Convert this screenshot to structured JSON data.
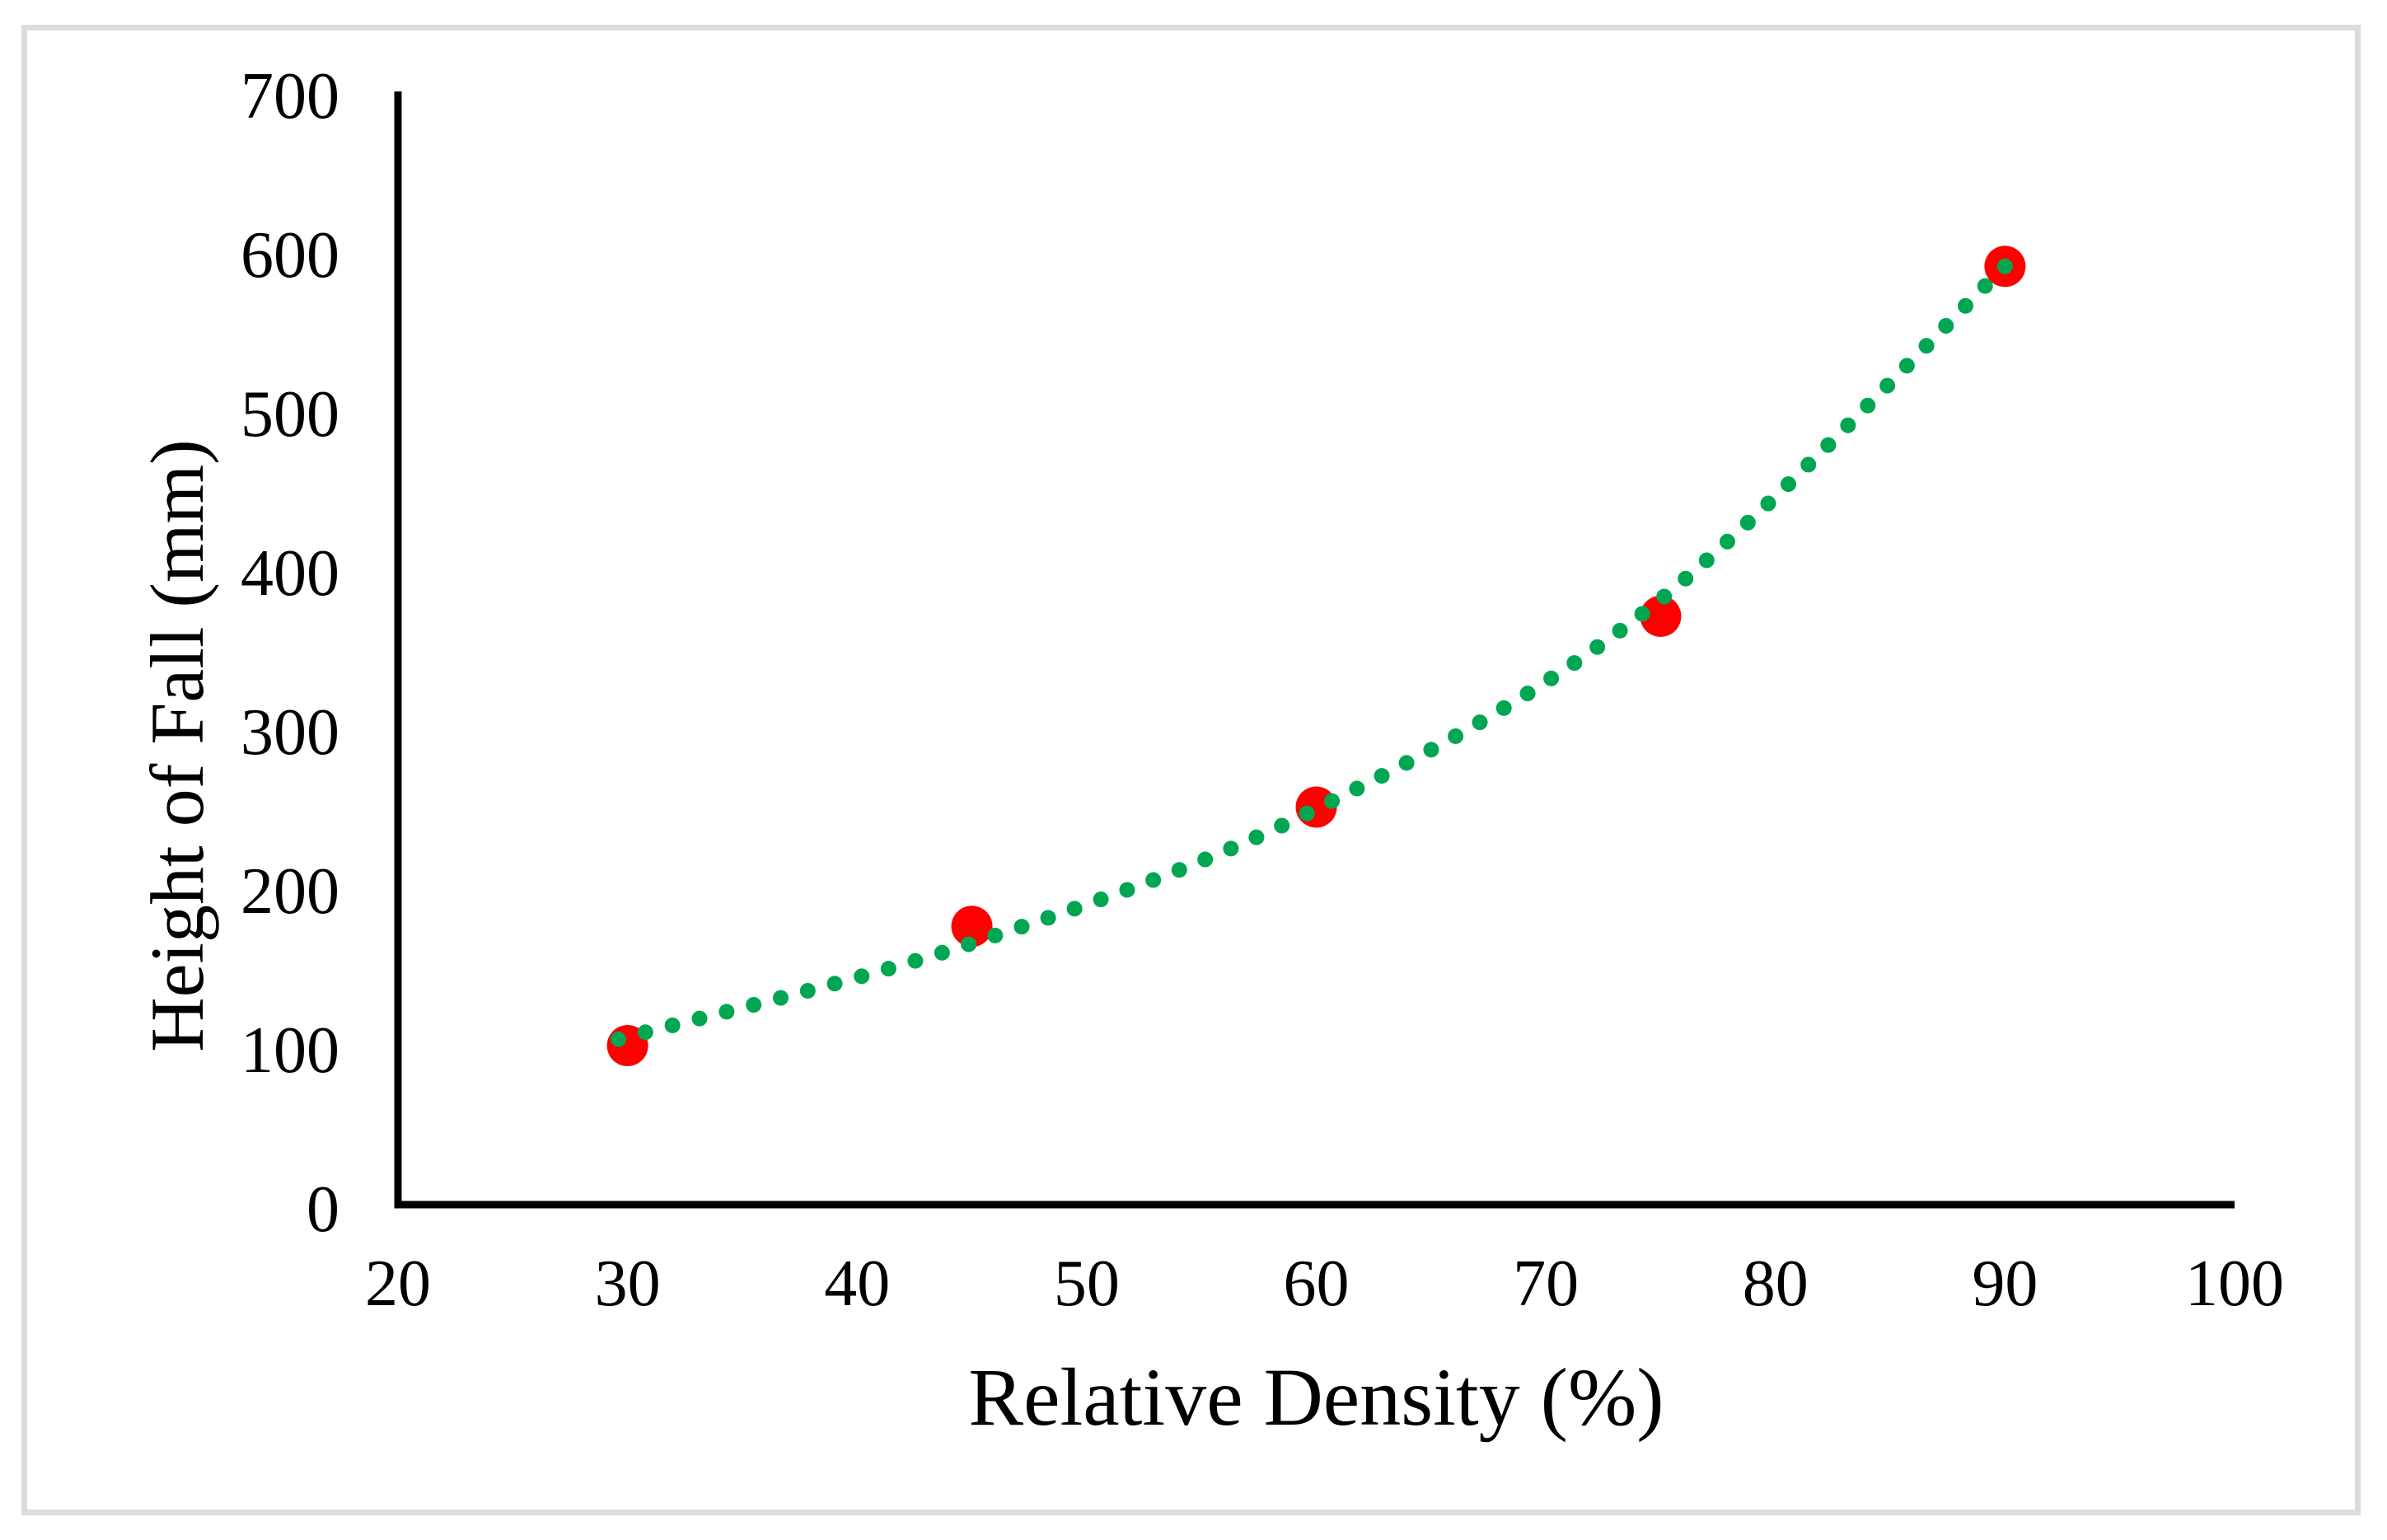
{
  "figure": {
    "background": "#FFFFFF",
    "border_color": "#DCDCDC",
    "axis_color": "#000000",
    "text_color": "#000000"
  },
  "chart_data": {
    "type": "scatter",
    "title": "",
    "xlabel": "Relative Density (%)",
    "ylabel": "Height of Fall (mm)",
    "xlim": [
      20,
      100
    ],
    "ylim": [
      0,
      700
    ],
    "x_ticks": [
      20,
      30,
      40,
      50,
      60,
      70,
      80,
      90,
      100
    ],
    "y_ticks": [
      0,
      100,
      200,
      300,
      400,
      500,
      600,
      700
    ],
    "grid": false,
    "legend": false,
    "series": [
      {
        "name": "height-of-fall-points",
        "marker": "circle",
        "color": "#FF0000",
        "marker_radius_px": 25,
        "points": [
          [
            30,
            100
          ],
          [
            45,
            175
          ],
          [
            60,
            250
          ],
          [
            75,
            370
          ],
          [
            90,
            590
          ]
        ]
      }
    ],
    "trendline": {
      "style": "round-dot",
      "color": "#00A651",
      "dot_radius_px": 9.5,
      "dot_spacing_px": 34,
      "anchors": [
        [
          29.6,
          104
        ],
        [
          44.7,
          163
        ],
        [
          59.6,
          246
        ],
        [
          74.6,
          376
        ],
        [
          90,
          590
        ]
      ]
    }
  }
}
